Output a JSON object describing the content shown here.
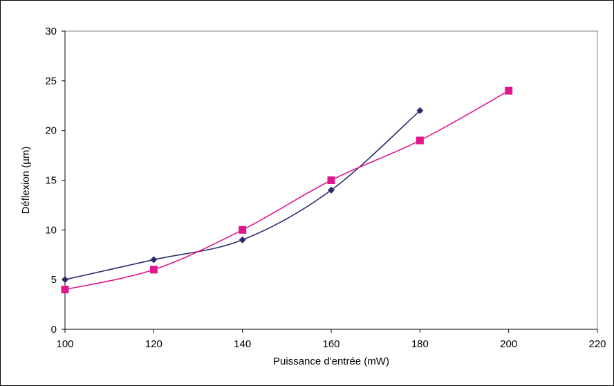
{
  "chart_data": {
    "type": "line",
    "title": "",
    "xlabel": "Puissance d'entrée (mW)",
    "ylabel": "Déflexion (µm)",
    "xlim": [
      100,
      220
    ],
    "ylim": [
      0,
      30
    ],
    "xticks": [
      "100",
      "120",
      "140",
      "160",
      "180",
      "200",
      "220"
    ],
    "yticks": [
      "0",
      "5",
      "10",
      "15",
      "20",
      "25",
      "30"
    ],
    "grid": false,
    "legend": "none",
    "series": [
      {
        "marker": "diamond",
        "color": "#2B2A6B",
        "x": [
          100,
          120,
          140,
          160,
          180
        ],
        "y": [
          5,
          7,
          9,
          14,
          22
        ]
      },
      {
        "marker": "square",
        "color": "#E0168C",
        "x": [
          100,
          120,
          140,
          160,
          180,
          200
        ],
        "y": [
          4,
          6,
          10,
          15,
          19,
          24
        ]
      }
    ]
  }
}
